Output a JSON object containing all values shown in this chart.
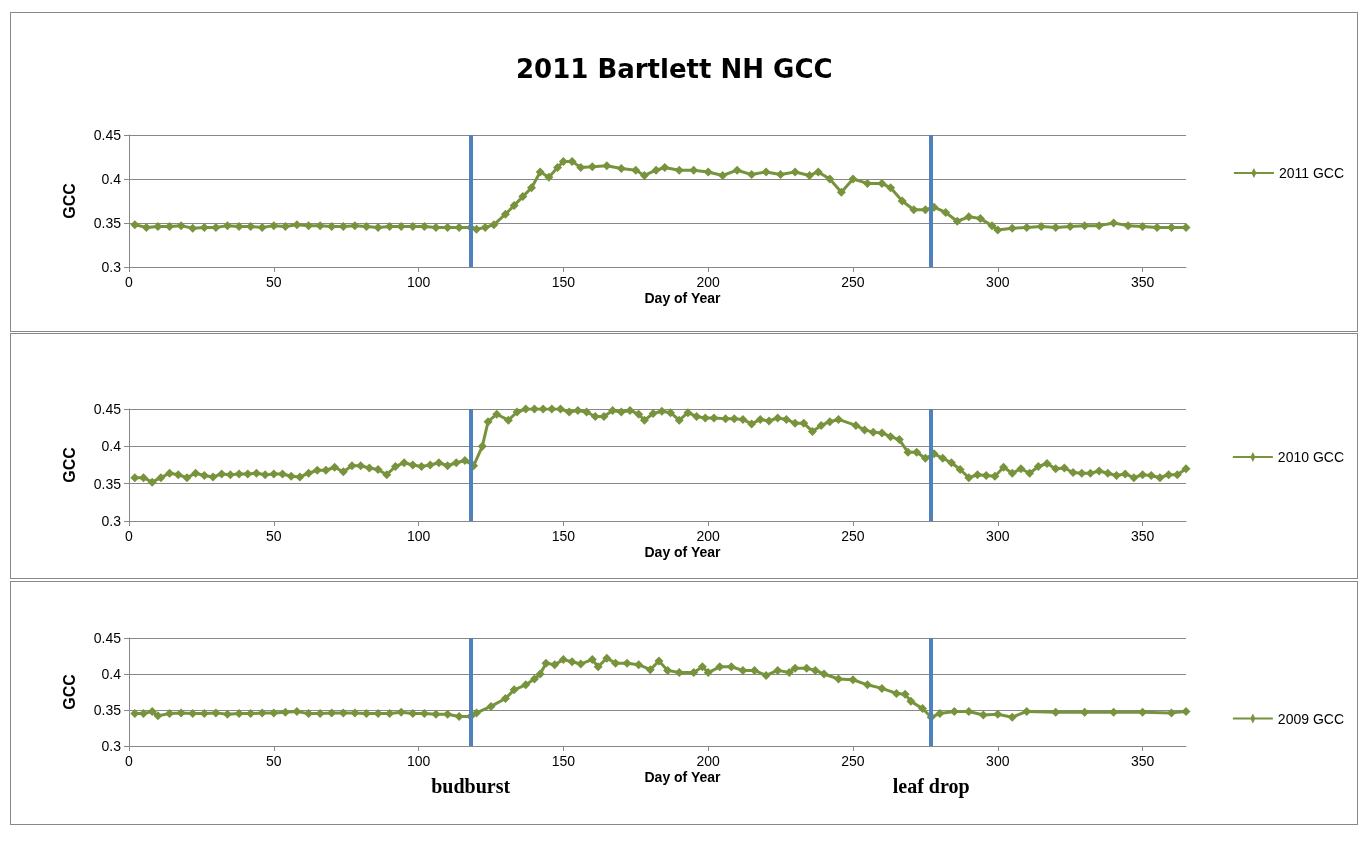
{
  "chart_data": [
    {
      "type": "line",
      "title": "2011 Bartlett NH GCC",
      "xlabel": "Day of Year",
      "ylabel": "GCC",
      "xlim": [
        0,
        365
      ],
      "xticks": [
        0,
        50,
        100,
        150,
        200,
        250,
        300,
        350
      ],
      "ylim": [
        0.3,
        0.45
      ],
      "yticks": [
        0.3,
        0.35,
        0.4,
        0.45
      ],
      "grid": "y",
      "legend": "right",
      "marker": "diamond",
      "line_style": "solid",
      "series": [
        {
          "name": "2011 GCC",
          "color": "#77933c",
          "x": [
            2,
            6,
            10,
            14,
            18,
            22,
            26,
            30,
            34,
            38,
            42,
            46,
            50,
            54,
            58,
            62,
            66,
            70,
            74,
            78,
            82,
            86,
            90,
            94,
            98,
            102,
            106,
            110,
            114,
            118,
            120,
            123,
            126,
            130,
            133,
            136,
            139,
            142,
            145,
            148,
            150,
            153,
            156,
            160,
            165,
            170,
            175,
            178,
            182,
            185,
            190,
            195,
            200,
            205,
            210,
            215,
            220,
            225,
            230,
            235,
            238,
            242,
            246,
            250,
            255,
            260,
            263,
            267,
            271,
            275,
            278,
            282,
            286,
            290,
            294,
            298,
            300,
            305,
            310,
            315,
            320,
            325,
            330,
            335,
            340,
            345,
            350,
            355,
            360,
            365
          ],
          "values": [
            0.348,
            0.345,
            0.346,
            0.346,
            0.347,
            0.344,
            0.345,
            0.345,
            0.347,
            0.346,
            0.346,
            0.345,
            0.347,
            0.346,
            0.348,
            0.347,
            0.347,
            0.346,
            0.346,
            0.347,
            0.346,
            0.345,
            0.346,
            0.346,
            0.346,
            0.346,
            0.345,
            0.345,
            0.345,
            0.345,
            0.343,
            0.345,
            0.348,
            0.36,
            0.37,
            0.38,
            0.39,
            0.408,
            0.402,
            0.413,
            0.42,
            0.42,
            0.413,
            0.414,
            0.415,
            0.412,
            0.41,
            0.404,
            0.41,
            0.413,
            0.41,
            0.41,
            0.408,
            0.404,
            0.41,
            0.405,
            0.408,
            0.405,
            0.408,
            0.404,
            0.408,
            0.4,
            0.385,
            0.4,
            0.395,
            0.395,
            0.39,
            0.375,
            0.365,
            0.365,
            0.368,
            0.362,
            0.352,
            0.357,
            0.355,
            0.347,
            0.342,
            0.344,
            0.345,
            0.346,
            0.345,
            0.346,
            0.347,
            0.347,
            0.35,
            0.347,
            0.346,
            0.345,
            0.345,
            0.345
          ]
        }
      ],
      "ref_lines": [
        {
          "axis": "x",
          "value": 118,
          "color": "#4f81bd"
        },
        {
          "axis": "x",
          "value": 277,
          "color": "#4f81bd"
        }
      ]
    },
    {
      "type": "line",
      "xlabel": "Day of Year",
      "ylabel": "GCC",
      "xlim": [
        0,
        365
      ],
      "xticks": [
        0,
        50,
        100,
        150,
        200,
        250,
        300,
        350
      ],
      "ylim": [
        0.3,
        0.45
      ],
      "yticks": [
        0.3,
        0.35,
        0.4,
        0.45
      ],
      "grid": "y",
      "legend": "right",
      "marker": "diamond",
      "line_style": "solid",
      "series": [
        {
          "name": "2010 GCC",
          "color": "#77933c",
          "x": [
            2,
            5,
            8,
            11,
            14,
            17,
            20,
            23,
            26,
            29,
            32,
            35,
            38,
            41,
            44,
            47,
            50,
            53,
            56,
            59,
            62,
            65,
            68,
            71,
            74,
            77,
            80,
            83,
            86,
            89,
            92,
            95,
            98,
            101,
            104,
            107,
            110,
            113,
            116,
            119,
            122,
            124,
            127,
            131,
            134,
            137,
            140,
            143,
            146,
            149,
            152,
            155,
            158,
            161,
            164,
            167,
            170,
            173,
            176,
            178,
            181,
            184,
            187,
            190,
            193,
            196,
            199,
            202,
            206,
            209,
            212,
            215,
            218,
            221,
            224,
            227,
            230,
            233,
            236,
            239,
            242,
            245,
            251,
            254,
            257,
            260,
            263,
            266,
            269,
            272,
            275,
            278,
            281,
            284,
            287,
            290,
            293,
            296,
            299,
            302,
            305,
            308,
            311,
            314,
            317,
            320,
            323,
            326,
            329,
            332,
            335,
            338,
            341,
            344,
            347,
            350,
            353,
            356,
            359,
            362,
            365
          ],
          "values": [
            0.358,
            0.358,
            0.352,
            0.358,
            0.364,
            0.362,
            0.358,
            0.364,
            0.361,
            0.359,
            0.363,
            0.362,
            0.363,
            0.363,
            0.364,
            0.362,
            0.363,
            0.363,
            0.36,
            0.359,
            0.364,
            0.368,
            0.368,
            0.372,
            0.366,
            0.374,
            0.374,
            0.371,
            0.369,
            0.362,
            0.373,
            0.378,
            0.375,
            0.373,
            0.375,
            0.378,
            0.374,
            0.378,
            0.381,
            0.374,
            0.4,
            0.433,
            0.443,
            0.435,
            0.446,
            0.45,
            0.45,
            0.45,
            0.45,
            0.45,
            0.446,
            0.448,
            0.446,
            0.44,
            0.44,
            0.448,
            0.446,
            0.448,
            0.443,
            0.435,
            0.444,
            0.447,
            0.445,
            0.435,
            0.445,
            0.44,
            0.438,
            0.438,
            0.437,
            0.437,
            0.436,
            0.43,
            0.436,
            0.434,
            0.438,
            0.436,
            0.431,
            0.431,
            0.42,
            0.428,
            0.433,
            0.436,
            0.428,
            0.422,
            0.419,
            0.418,
            0.413,
            0.409,
            0.392,
            0.392,
            0.384,
            0.39,
            0.384,
            0.378,
            0.369,
            0.358,
            0.362,
            0.361,
            0.36,
            0.372,
            0.364,
            0.37,
            0.364,
            0.373,
            0.377,
            0.37,
            0.371,
            0.365,
            0.364,
            0.364,
            0.367,
            0.364,
            0.361,
            0.363,
            0.358,
            0.362,
            0.361,
            0.358,
            0.362,
            0.362,
            0.37
          ]
        }
      ],
      "ref_lines": [
        {
          "axis": "x",
          "value": 118,
          "color": "#4f81bd"
        },
        {
          "axis": "x",
          "value": 277,
          "color": "#4f81bd"
        }
      ]
    },
    {
      "type": "line",
      "xlabel": "Day of Year",
      "ylabel": "GCC",
      "xlim": [
        0,
        365
      ],
      "xticks": [
        0,
        50,
        100,
        150,
        200,
        250,
        300,
        350
      ],
      "ylim": [
        0.3,
        0.45
      ],
      "yticks": [
        0.3,
        0.35,
        0.4,
        0.45
      ],
      "grid": "y",
      "legend": "right",
      "marker": "diamond",
      "line_style": "solid",
      "series": [
        {
          "name": "2009 GCC",
          "color": "#77933c",
          "x": [
            2,
            5,
            8,
            10,
            14,
            18,
            22,
            26,
            30,
            34,
            38,
            42,
            46,
            50,
            54,
            58,
            62,
            66,
            70,
            74,
            78,
            82,
            86,
            90,
            94,
            98,
            102,
            106,
            110,
            114,
            118,
            120,
            125,
            130,
            133,
            137,
            140,
            142,
            144,
            147,
            150,
            153,
            156,
            160,
            162,
            165,
            168,
            172,
            176,
            180,
            183,
            186,
            190,
            195,
            198,
            200,
            204,
            208,
            212,
            216,
            220,
            224,
            228,
            230,
            234,
            237,
            240,
            245,
            250,
            255,
            260,
            265,
            268,
            270,
            274,
            277,
            280,
            285,
            290,
            295,
            300,
            305,
            310,
            320,
            330,
            340,
            350,
            360,
            365
          ],
          "values": [
            0.345,
            0.345,
            0.348,
            0.342,
            0.345,
            0.346,
            0.345,
            0.345,
            0.346,
            0.344,
            0.345,
            0.345,
            0.346,
            0.346,
            0.347,
            0.348,
            0.345,
            0.345,
            0.346,
            0.346,
            0.346,
            0.345,
            0.345,
            0.345,
            0.347,
            0.345,
            0.345,
            0.344,
            0.344,
            0.341,
            0.341,
            0.346,
            0.355,
            0.366,
            0.378,
            0.385,
            0.393,
            0.4,
            0.415,
            0.413,
            0.42,
            0.417,
            0.414,
            0.42,
            0.41,
            0.422,
            0.415,
            0.415,
            0.413,
            0.406,
            0.418,
            0.405,
            0.402,
            0.402,
            0.41,
            0.402,
            0.41,
            0.41,
            0.405,
            0.405,
            0.398,
            0.405,
            0.402,
            0.408,
            0.408,
            0.405,
            0.4,
            0.393,
            0.392,
            0.385,
            0.38,
            0.373,
            0.372,
            0.362,
            0.352,
            0.34,
            0.345,
            0.348,
            0.348,
            0.343,
            0.344,
            0.34,
            0.348,
            0.347,
            0.347,
            0.347,
            0.347,
            0.346,
            0.348
          ]
        }
      ],
      "ref_lines": [
        {
          "axis": "x",
          "value": 118,
          "label": "budburst",
          "color": "#4f81bd"
        },
        {
          "axis": "x",
          "value": 277,
          "label": "leaf drop",
          "color": "#4f81bd"
        }
      ]
    }
  ]
}
